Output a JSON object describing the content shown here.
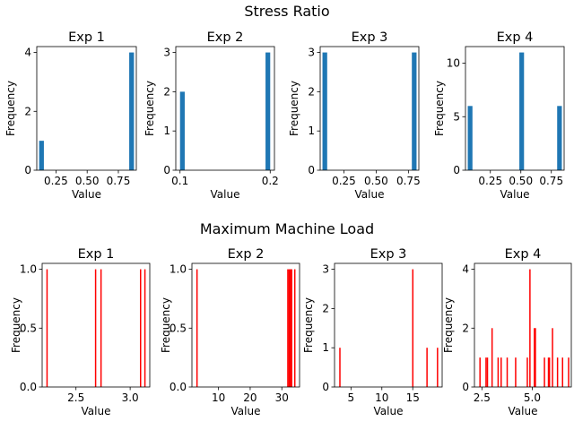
{
  "figure": {
    "top_title": "Stress Ratio",
    "bottom_title": "Maximum Machine Load"
  },
  "colors": {
    "stress_bar": "#1f77b4",
    "load_bar": "#ff0000",
    "axis": "#000000",
    "background": "#ffffff"
  },
  "chart_data": [
    {
      "type": "bar",
      "group": "Stress Ratio",
      "title": "Exp  1",
      "xlabel": "Value",
      "ylabel": "Frequency",
      "xlim": [
        0.096,
        0.894
      ],
      "ylim": [
        0,
        4.2
      ],
      "bar_width": 0.038,
      "x": [
        0.134,
        0.856
      ],
      "values": [
        1,
        4
      ],
      "xticks": [
        0.25,
        0.5,
        0.75
      ],
      "xtick_labels": [
        "0.25",
        "0.50",
        "0.75"
      ],
      "yticks": [
        0,
        2,
        4
      ],
      "ytick_labels": [
        "0",
        "2",
        "4"
      ]
    },
    {
      "type": "bar",
      "group": "Stress Ratio",
      "title": "Exp  2",
      "xlabel": "Value",
      "ylabel": "Frequency",
      "xlim": [
        0.0953,
        0.2047
      ],
      "ylim": [
        0,
        3.15
      ],
      "bar_width": 0.0052,
      "x": [
        0.1026,
        0.1974
      ],
      "values": [
        2,
        3
      ],
      "xticks": [
        0.1,
        0.2
      ],
      "xtick_labels": [
        "0.1",
        "0.2"
      ],
      "yticks": [
        0,
        1,
        2,
        3
      ],
      "ytick_labels": [
        "0",
        "1",
        "2",
        "3"
      ]
    },
    {
      "type": "bar",
      "group": "Stress Ratio",
      "title": "Exp  3",
      "xlabel": "Value",
      "ylabel": "Frequency",
      "xlim": [
        0.066,
        0.831
      ],
      "ylim": [
        0,
        3.15
      ],
      "bar_width": 0.0365,
      "x": [
        0.102,
        0.795
      ],
      "values": [
        3,
        3
      ],
      "xticks": [
        0.25,
        0.5,
        0.75
      ],
      "xtick_labels": [
        "0.25",
        "0.50",
        "0.75"
      ],
      "yticks": [
        0,
        1,
        2,
        3
      ],
      "ytick_labels": [
        "0",
        "1",
        "2",
        "3"
      ]
    },
    {
      "type": "bar",
      "group": "Stress Ratio",
      "title": "Exp  4",
      "xlabel": "Value",
      "ylabel": "Frequency",
      "xlim": [
        0.046,
        0.855
      ],
      "ylim": [
        0,
        11.55
      ],
      "bar_width": 0.0385,
      "x": [
        0.084,
        0.507,
        0.817
      ],
      "values": [
        6,
        11,
        6
      ],
      "xticks": [
        0.25,
        0.5,
        0.75
      ],
      "xtick_labels": [
        "0.25",
        "0.50",
        "0.75"
      ],
      "yticks": [
        0,
        5,
        10
      ],
      "ytick_labels": [
        "0",
        "5",
        "10"
      ]
    },
    {
      "type": "bar",
      "group": "Maximum Machine Load",
      "title": "Exp  1",
      "xlabel": "Value",
      "ylabel": "Frequency",
      "xlim": [
        2.188,
        3.181
      ],
      "ylim": [
        0,
        1.05
      ],
      "bar_width": 0.012,
      "x": [
        2.233,
        2.681,
        2.731,
        3.096,
        3.136
      ],
      "values": [
        1,
        1,
        1,
        1,
        1
      ],
      "xticks": [
        2.5,
        3.0
      ],
      "xtick_labels": [
        "2.5",
        "3.0"
      ],
      "yticks": [
        0,
        0.5,
        1.0
      ],
      "ytick_labels": [
        "0.0",
        "0.5",
        "1.0"
      ]
    },
    {
      "type": "bar",
      "group": "Maximum Machine Load",
      "title": "Exp  2",
      "xlabel": "Value",
      "ylabel": "Frequency",
      "xlim": [
        1.6,
        35.6
      ],
      "ylim": [
        0,
        1.05
      ],
      "bar_width": 0.42,
      "x": [
        3.2,
        31.9,
        32.3,
        32.7,
        33.1,
        34.1
      ],
      "values": [
        1,
        1,
        1,
        1,
        1,
        1
      ],
      "xticks": [
        10,
        20,
        30
      ],
      "xtick_labels": [
        "10",
        "20",
        "30"
      ],
      "yticks": [
        0,
        0.5,
        1.0
      ],
      "ytick_labels": [
        "0.0",
        "0.5",
        "1.0"
      ]
    },
    {
      "type": "bar",
      "group": "Maximum Machine Load",
      "title": "Exp  3",
      "xlabel": "Value",
      "ylabel": "Frequency",
      "xlim": [
        2.34,
        19.76
      ],
      "ylim": [
        0,
        3.15
      ],
      "bar_width": 0.2,
      "x": [
        3.2,
        15.0,
        17.3,
        19.0
      ],
      "values": [
        1,
        3,
        1,
        1
      ],
      "xticks": [
        5,
        10,
        15
      ],
      "xtick_labels": [
        "5",
        "10",
        "15"
      ],
      "yticks": [
        0,
        1,
        2,
        3
      ],
      "ytick_labels": [
        "0",
        "1",
        "2",
        "3"
      ]
    },
    {
      "type": "bar",
      "group": "Maximum Machine Load",
      "title": "Exp  4",
      "xlabel": "Value",
      "ylabel": "Frequency",
      "xlim": [
        2.13,
        6.94
      ],
      "ylim": [
        0,
        4.2
      ],
      "bar_width": 0.055,
      "x": [
        2.4,
        2.7,
        2.77,
        3.0,
        3.3,
        3.45,
        3.75,
        4.17,
        4.75,
        4.88,
        5.1,
        5.15,
        5.6,
        5.8,
        5.85,
        6.0,
        6.25,
        6.5,
        6.8
      ],
      "values": [
        1,
        1,
        1,
        2,
        1,
        1,
        1,
        1,
        1,
        4,
        2,
        2,
        1,
        1,
        1,
        2,
        1,
        1,
        1
      ],
      "xticks": [
        2.5,
        5.0
      ],
      "xtick_labels": [
        "2.5",
        "5.0"
      ],
      "yticks": [
        0,
        2,
        4
      ],
      "ytick_labels": [
        "0",
        "2",
        "4"
      ]
    }
  ]
}
